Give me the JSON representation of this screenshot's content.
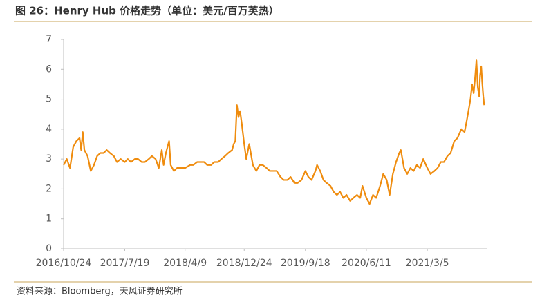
{
  "chart_data": {
    "type": "line",
    "title": "图 26：Henry Hub 价格走势（单位：美元/百万英热）",
    "source": "资料来源：Bloomberg，天风证券研究所",
    "color": "#ef8c0e",
    "x": [
      "2016/10/24",
      "2016/11/7",
      "2016/11/21",
      "2016/12/5",
      "2016/12/19",
      "2017/1/2",
      "2017/1/9",
      "2017/1/16",
      "2017/1/23",
      "2017/2/6",
      "2017/2/20",
      "2017/3/6",
      "2017/3/20",
      "2017/4/3",
      "2017/4/17",
      "2017/5/1",
      "2017/5/15",
      "2017/6/1",
      "2017/6/15",
      "2017/7/1",
      "2017/7/19",
      "2017/8/1",
      "2017/8/15",
      "2017/9/1",
      "2017/9/15",
      "2017/10/1",
      "2017/10/15",
      "2017/11/1",
      "2017/11/15",
      "2017/12/1",
      "2017/12/15",
      "2017/12/28",
      "2018/1/5",
      "2018/1/15",
      "2018/1/29",
      "2018/2/5",
      "2018/2/19",
      "2018/3/5",
      "2018/3/19",
      "2018/4/9",
      "2018/5/1",
      "2018/5/15",
      "2018/6/1",
      "2018/6/15",
      "2018/7/1",
      "2018/7/15",
      "2018/8/1",
      "2018/8/15",
      "2018/9/1",
      "2018/9/15",
      "2018/10/1",
      "2018/10/15",
      "2018/11/1",
      "2018/11/8",
      "2018/11/15",
      "2018/11/22",
      "2018/11/29",
      "2018/12/6",
      "2018/12/13",
      "2018/12/24",
      "2019/1/2",
      "2019/1/15",
      "2019/1/31",
      "2019/2/15",
      "2019/3/1",
      "2019/3/15",
      "2019/4/1",
      "2019/4/15",
      "2019/5/1",
      "2019/5/15",
      "2019/6/1",
      "2019/6/15",
      "2019/7/1",
      "2019/7/15",
      "2019/8/1",
      "2019/8/15",
      "2019/9/1",
      "2019/9/18",
      "2019/10/1",
      "2019/10/15",
      "2019/11/1",
      "2019/11/8",
      "2019/11/22",
      "2019/12/6",
      "2019/12/20",
      "2020/1/6",
      "2020/1/20",
      "2020/2/3",
      "2020/2/17",
      "2020/3/2",
      "2020/3/16",
      "2020/4/1",
      "2020/4/15",
      "2020/5/1",
      "2020/5/15",
      "2020/5/25",
      "2020/6/11",
      "2020/6/25",
      "2020/7/10",
      "2020/7/24",
      "2020/8/10",
      "2020/8/24",
      "2020/9/8",
      "2020/9/21",
      "2020/10/5",
      "2020/10/19",
      "2020/11/2",
      "2020/11/9",
      "2020/11/23",
      "2020/12/7",
      "2020/12/21",
      "2021/1/4",
      "2021/1/18",
      "2021/2/1",
      "2021/2/15",
      "2021/3/5",
      "2021/3/19",
      "2021/4/5",
      "2021/4/19",
      "2021/5/3",
      "2021/5/17",
      "2021/6/1",
      "2021/6/15",
      "2021/7/1",
      "2021/7/15",
      "2021/8/1",
      "2021/8/15",
      "2021/8/25",
      "2021/9/1",
      "2021/9/10",
      "2021/9/17",
      "2021/9/24",
      "2021/10/1",
      "2021/10/6",
      "2021/10/12",
      "2021/10/18",
      "2021/10/22",
      "2021/10/27",
      "2021/11/1",
      "2021/11/5",
      "2021/11/9"
    ],
    "values": [
      2.8,
      3.0,
      2.7,
      3.4,
      3.6,
      3.7,
      3.3,
      3.9,
      3.3,
      3.1,
      2.6,
      2.8,
      3.1,
      3.2,
      3.2,
      3.3,
      3.2,
      3.1,
      2.9,
      3.0,
      2.9,
      3.0,
      2.9,
      3.0,
      3.0,
      2.9,
      2.9,
      3.0,
      3.1,
      3.0,
      2.7,
      3.3,
      2.8,
      3.2,
      3.6,
      2.8,
      2.6,
      2.7,
      2.7,
      2.7,
      2.8,
      2.8,
      2.9,
      2.9,
      2.9,
      2.8,
      2.8,
      2.9,
      2.9,
      3.0,
      3.1,
      3.2,
      3.3,
      3.5,
      3.6,
      4.8,
      4.4,
      4.6,
      4.2,
      3.5,
      3.0,
      3.5,
      2.8,
      2.6,
      2.8,
      2.8,
      2.7,
      2.6,
      2.6,
      2.6,
      2.4,
      2.3,
      2.3,
      2.4,
      2.2,
      2.2,
      2.3,
      2.6,
      2.4,
      2.3,
      2.6,
      2.8,
      2.6,
      2.3,
      2.2,
      2.1,
      1.9,
      1.8,
      1.9,
      1.7,
      1.8,
      1.6,
      1.7,
      1.8,
      1.7,
      2.1,
      1.7,
      1.5,
      1.8,
      1.7,
      2.1,
      2.5,
      2.3,
      1.8,
      2.5,
      2.9,
      3.2,
      3.3,
      2.7,
      2.5,
      2.7,
      2.6,
      2.8,
      2.7,
      3.0,
      2.7,
      2.5,
      2.6,
      2.7,
      2.9,
      2.9,
      3.1,
      3.2,
      3.6,
      3.7,
      4.0,
      3.9,
      4.3,
      4.6,
      5.0,
      5.5,
      5.2,
      5.8,
      6.3,
      5.4,
      5.1,
      5.8,
      6.1,
      5.5,
      5.1,
      4.8
    ],
    "xlim": [
      "2016/10/24",
      "2021/11/20"
    ],
    "xticks": [
      "2016/10/24",
      "2017/7/19",
      "2018/4/9",
      "2018/12/24",
      "2019/9/18",
      "2020/6/11",
      "2021/3/5"
    ],
    "ylim": [
      0,
      7
    ],
    "yticks": [
      0,
      1,
      2,
      3,
      4,
      5,
      6,
      7
    ],
    "grid": false
  }
}
